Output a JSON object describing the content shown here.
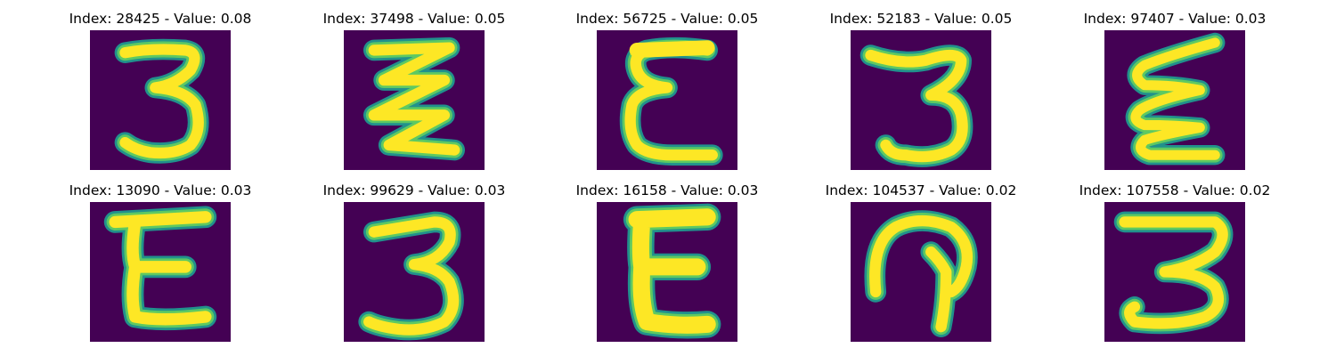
{
  "colors": {
    "background": "#440154",
    "stroke_core": "#FDE725",
    "stroke_mid": "#5EC962",
    "stroke_edge": "#21918C"
  },
  "panels": [
    {
      "title": "Index: 28425 - Value: 0.08",
      "glyph": "digit-three-icon"
    },
    {
      "title": "Index: 37498 - Value: 0.05",
      "glyph": "zigzag-three-icon"
    },
    {
      "title": "Index: 56725 - Value: 0.05",
      "glyph": "letter-e-icon"
    },
    {
      "title": "Index: 52183 - Value: 0.05",
      "glyph": "digit-three-icon"
    },
    {
      "title": "Index: 97407 - Value: 0.03",
      "glyph": "squiggle-e-icon"
    },
    {
      "title": "Index: 13090 - Value: 0.03",
      "glyph": "letter-e-icon"
    },
    {
      "title": "Index: 99629 - Value: 0.03",
      "glyph": "digit-three-icon"
    },
    {
      "title": "Index: 16158 - Value: 0.03",
      "glyph": "letter-e-icon"
    },
    {
      "title": "Index: 104537 - Value: 0.02",
      "glyph": "hook-shape-icon"
    },
    {
      "title": "Index: 107558 - Value: 0.02",
      "glyph": "digit-three-icon"
    }
  ]
}
